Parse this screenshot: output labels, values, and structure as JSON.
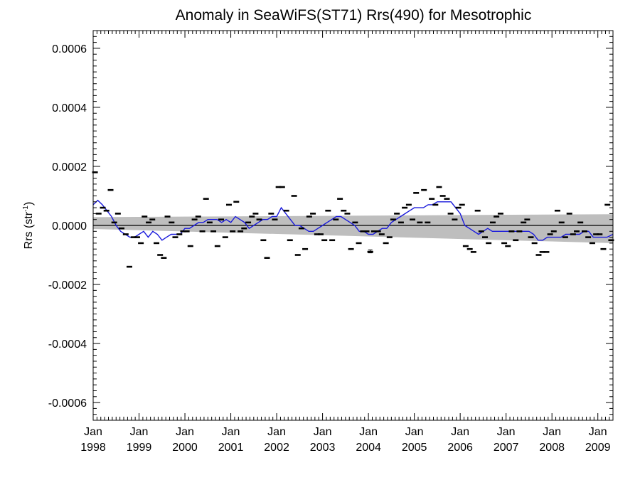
{
  "chart_data": {
    "type": "line",
    "title": "Anomaly in SeaWiFS(ST71) Rrs(490) for Mesotrophic",
    "ylabel": "Rrs (str",
    "ylabel_sup": "-1",
    "ylabel_close": ")",
    "xlabel": "",
    "xlim": [
      1998.0,
      2009.33
    ],
    "ylim": [
      -0.00066,
      0.00066
    ],
    "yticks": [
      {
        "value": 0.0006,
        "label": "0.0006"
      },
      {
        "value": 0.0004,
        "label": "0.0004"
      },
      {
        "value": 0.0002,
        "label": "0.0002"
      },
      {
        "value": 0.0,
        "label": "0.0000"
      },
      {
        "value": -0.0002,
        "label": "-0.0002"
      },
      {
        "value": -0.0004,
        "label": "-0.0004"
      },
      {
        "value": -0.0006,
        "label": "-0.0006"
      }
    ],
    "xticks": [
      {
        "value": 1998.0,
        "month": "Jan",
        "year": "1998"
      },
      {
        "value": 1999.0,
        "month": "Jan",
        "year": "1999"
      },
      {
        "value": 2000.0,
        "month": "Jan",
        "year": "2000"
      },
      {
        "value": 2001.0,
        "month": "Jan",
        "year": "2001"
      },
      {
        "value": 2002.0,
        "month": "Jan",
        "year": "2002"
      },
      {
        "value": 2003.0,
        "month": "Jan",
        "year": "2003"
      },
      {
        "value": 2004.0,
        "month": "Jan",
        "year": "2004"
      },
      {
        "value": 2005.0,
        "month": "Jan",
        "year": "2005"
      },
      {
        "value": 2006.0,
        "month": "Jan",
        "year": "2006"
      },
      {
        "value": 2007.0,
        "month": "Jan",
        "year": "2007"
      },
      {
        "value": 2008.0,
        "month": "Jan",
        "year": "2008"
      },
      {
        "value": 2009.0,
        "month": "Jan",
        "year": "2009"
      }
    ],
    "zero_line": 0.0,
    "trend_band": {
      "x": [
        1998.0,
        2009.33
      ],
      "upper": [
        2.8e-05,
        3.8e-05
      ],
      "lower": [
        -1.2e-05,
        -6e-05
      ]
    },
    "colors": {
      "points": "#000000",
      "running_mean": "#1a1adc",
      "band": "#bebebe",
      "zero_line": "#000000"
    },
    "series": [
      {
        "kind": "monthly_anomaly",
        "style": "dash",
        "points": [
          [
            1998.04,
            0.00018
          ],
          [
            1998.12,
            4e-05
          ],
          [
            1998.21,
            6e-05
          ],
          [
            1998.29,
            5e-05
          ],
          [
            1998.38,
            0.00012
          ],
          [
            1998.46,
            1e-05
          ],
          [
            1998.54,
            4e-05
          ],
          [
            1998.62,
            -1e-05
          ],
          [
            1998.71,
            -3e-05
          ],
          [
            1998.79,
            -0.00014
          ],
          [
            1998.88,
            -4e-05
          ],
          [
            1998.96,
            -4e-05
          ],
          [
            1999.04,
            -6e-05
          ],
          [
            1999.12,
            3e-05
          ],
          [
            1999.21,
            1e-05
          ],
          [
            1999.29,
            2e-05
          ],
          [
            1999.38,
            -6e-05
          ],
          [
            1999.46,
            -0.0001
          ],
          [
            1999.54,
            -0.00011
          ],
          [
            1999.62,
            3e-05
          ],
          [
            1999.71,
            1e-05
          ],
          [
            1999.79,
            -4e-05
          ],
          [
            1999.88,
            -3e-05
          ],
          [
            1999.96,
            -2e-05
          ],
          [
            2000.04,
            -2e-05
          ],
          [
            2000.12,
            -7e-05
          ],
          [
            2000.21,
            2e-05
          ],
          [
            2000.29,
            3e-05
          ],
          [
            2000.38,
            -2e-05
          ],
          [
            2000.46,
            9e-05
          ],
          [
            2000.54,
            1e-05
          ],
          [
            2000.62,
            -2e-05
          ],
          [
            2000.71,
            -7e-05
          ],
          [
            2000.79,
            2e-05
          ],
          [
            2000.88,
            -4e-05
          ],
          [
            2000.96,
            7e-05
          ],
          [
            2001.04,
            -2e-05
          ],
          [
            2001.12,
            8e-05
          ],
          [
            2001.21,
            -2e-05
          ],
          [
            2001.29,
            -1e-05
          ],
          [
            2001.38,
            1e-05
          ],
          [
            2001.46,
            3e-05
          ],
          [
            2001.54,
            4e-05
          ],
          [
            2001.62,
            2e-05
          ],
          [
            2001.71,
            -5e-05
          ],
          [
            2001.79,
            -0.00011
          ],
          [
            2001.88,
            4e-05
          ],
          [
            2001.96,
            2e-05
          ],
          [
            2002.04,
            0.00013
          ],
          [
            2002.12,
            0.00013
          ],
          [
            2002.21,
            5e-05
          ],
          [
            2002.29,
            -5e-05
          ],
          [
            2002.38,
            0.0001
          ],
          [
            2002.46,
            -0.0001
          ],
          [
            2002.54,
            -1e-05
          ],
          [
            2002.62,
            -8e-05
          ],
          [
            2002.71,
            3e-05
          ],
          [
            2002.79,
            4e-05
          ],
          [
            2002.88,
            -3e-05
          ],
          [
            2002.96,
            -3e-05
          ],
          [
            2003.04,
            -5e-05
          ],
          [
            2003.12,
            5e-05
          ],
          [
            2003.21,
            -5e-05
          ],
          [
            2003.29,
            2e-05
          ],
          [
            2003.38,
            9e-05
          ],
          [
            2003.46,
            5e-05
          ],
          [
            2003.54,
            4e-05
          ],
          [
            2003.62,
            -8e-05
          ],
          [
            2003.71,
            1e-05
          ],
          [
            2003.79,
            -6e-05
          ],
          [
            2003.88,
            -2e-05
          ],
          [
            2003.96,
            -2e-05
          ],
          [
            2004.04,
            -9e-05
          ],
          [
            2004.12,
            -2e-05
          ],
          [
            2004.21,
            -2e-05
          ],
          [
            2004.29,
            -3e-05
          ],
          [
            2004.38,
            -6e-05
          ],
          [
            2004.46,
            -4e-05
          ],
          [
            2004.54,
            2e-05
          ],
          [
            2004.62,
            4e-05
          ],
          [
            2004.71,
            1e-05
          ],
          [
            2004.79,
            6e-05
          ],
          [
            2004.88,
            7e-05
          ],
          [
            2004.96,
            2e-05
          ],
          [
            2005.04,
            0.00011
          ],
          [
            2005.12,
            1e-05
          ],
          [
            2005.21,
            0.00012
          ],
          [
            2005.29,
            1e-05
          ],
          [
            2005.38,
            9e-05
          ],
          [
            2005.46,
            7e-05
          ],
          [
            2005.54,
            0.00013
          ],
          [
            2005.62,
            0.0001
          ],
          [
            2005.71,
            9e-05
          ],
          [
            2005.79,
            4e-05
          ],
          [
            2005.88,
            2e-05
          ],
          [
            2005.96,
            6e-05
          ],
          [
            2006.04,
            7e-05
          ],
          [
            2006.12,
            -7e-05
          ],
          [
            2006.21,
            -8e-05
          ],
          [
            2006.29,
            -9e-05
          ],
          [
            2006.38,
            5e-05
          ],
          [
            2006.46,
            -2e-05
          ],
          [
            2006.54,
            -4e-05
          ],
          [
            2006.62,
            -6e-05
          ],
          [
            2006.71,
            1e-05
          ],
          [
            2006.79,
            3e-05
          ],
          [
            2006.88,
            4e-05
          ],
          [
            2006.96,
            -6e-05
          ],
          [
            2007.04,
            -7e-05
          ],
          [
            2007.12,
            -2e-05
          ],
          [
            2007.21,
            -5e-05
          ],
          [
            2007.29,
            -2e-05
          ],
          [
            2007.38,
            1e-05
          ],
          [
            2007.46,
            2e-05
          ],
          [
            2007.54,
            -4e-05
          ],
          [
            2007.62,
            -6e-05
          ],
          [
            2007.71,
            -0.0001
          ],
          [
            2007.79,
            -9e-05
          ],
          [
            2007.88,
            -9e-05
          ],
          [
            2007.96,
            -3e-05
          ],
          [
            2008.04,
            -2e-05
          ],
          [
            2008.12,
            5e-05
          ],
          [
            2008.21,
            1e-05
          ],
          [
            2008.29,
            -4e-05
          ],
          [
            2008.38,
            4e-05
          ],
          [
            2008.46,
            -3e-05
          ],
          [
            2008.54,
            -2e-05
          ],
          [
            2008.62,
            1e-05
          ],
          [
            2008.71,
            -2e-05
          ],
          [
            2008.79,
            -4e-05
          ],
          [
            2008.88,
            -6e-05
          ],
          [
            2008.96,
            -3e-05
          ],
          [
            2009.04,
            -3e-05
          ],
          [
            2009.12,
            -8e-05
          ],
          [
            2009.21,
            7e-05
          ],
          [
            2009.29,
            -5e-05
          ]
        ]
      },
      {
        "kind": "error_bar",
        "style": "errorbar",
        "points": [
          [
            2004.04,
            -8.8e-05,
            -8.3e-05,
            -9.3e-05
          ]
        ]
      },
      {
        "kind": "running_mean",
        "style": "line",
        "points": [
          [
            1998.0,
            7e-05
          ],
          [
            1998.1,
            8.5e-05
          ],
          [
            1998.2,
            7e-05
          ],
          [
            1998.3,
            5e-05
          ],
          [
            1998.4,
            3e-05
          ],
          [
            1998.5,
            0.0
          ],
          [
            1998.6,
            -2e-05
          ],
          [
            1998.7,
            -3e-05
          ],
          [
            1998.8,
            -4e-05
          ],
          [
            1998.9,
            -4e-05
          ],
          [
            1999.0,
            -3e-05
          ],
          [
            1999.1,
            -2e-05
          ],
          [
            1999.2,
            -4e-05
          ],
          [
            1999.3,
            -2e-05
          ],
          [
            1999.4,
            -3e-05
          ],
          [
            1999.5,
            -5e-05
          ],
          [
            1999.6,
            -4e-05
          ],
          [
            1999.7,
            -3e-05
          ],
          [
            1999.8,
            -3e-05
          ],
          [
            1999.9,
            -3e-05
          ],
          [
            2000.0,
            -1e-05
          ],
          [
            2000.1,
            -1e-05
          ],
          [
            2000.2,
            0.0
          ],
          [
            2000.3,
            1e-05
          ],
          [
            2000.4,
            1e-05
          ],
          [
            2000.5,
            2e-05
          ],
          [
            2000.6,
            2e-05
          ],
          [
            2000.7,
            2e-05
          ],
          [
            2000.8,
            1e-05
          ],
          [
            2000.9,
            2e-05
          ],
          [
            2001.0,
            1e-05
          ],
          [
            2001.1,
            3e-05
          ],
          [
            2001.2,
            2e-05
          ],
          [
            2001.3,
            1e-05
          ],
          [
            2001.4,
            -1e-05
          ],
          [
            2001.5,
            0.0
          ],
          [
            2001.6,
            1e-05
          ],
          [
            2001.7,
            2e-05
          ],
          [
            2001.8,
            2e-05
          ],
          [
            2001.9,
            3e-05
          ],
          [
            2002.0,
            3e-05
          ],
          [
            2002.1,
            6e-05
          ],
          [
            2002.2,
            4e-05
          ],
          [
            2002.3,
            2e-05
          ],
          [
            2002.4,
            0.0
          ],
          [
            2002.5,
            0.0
          ],
          [
            2002.6,
            -1e-05
          ],
          [
            2002.7,
            -2e-05
          ],
          [
            2002.8,
            -2e-05
          ],
          [
            2002.9,
            -1e-05
          ],
          [
            2003.0,
            0.0
          ],
          [
            2003.1,
            1e-05
          ],
          [
            2003.2,
            2e-05
          ],
          [
            2003.3,
            3e-05
          ],
          [
            2003.4,
            3e-05
          ],
          [
            2003.5,
            2e-05
          ],
          [
            2003.6,
            1e-05
          ],
          [
            2003.7,
            0.0
          ],
          [
            2003.8,
            -2e-05
          ],
          [
            2003.9,
            -2e-05
          ],
          [
            2004.0,
            -3e-05
          ],
          [
            2004.1,
            -3e-05
          ],
          [
            2004.2,
            -2e-05
          ],
          [
            2004.3,
            -1e-05
          ],
          [
            2004.4,
            -1e-05
          ],
          [
            2004.5,
            1e-05
          ],
          [
            2004.6,
            2e-05
          ],
          [
            2004.7,
            3e-05
          ],
          [
            2004.8,
            4e-05
          ],
          [
            2004.9,
            5e-05
          ],
          [
            2005.0,
            6e-05
          ],
          [
            2005.1,
            6e-05
          ],
          [
            2005.2,
            6e-05
          ],
          [
            2005.3,
            7e-05
          ],
          [
            2005.4,
            7e-05
          ],
          [
            2005.5,
            8e-05
          ],
          [
            2005.6,
            8e-05
          ],
          [
            2005.7,
            8e-05
          ],
          [
            2005.8,
            8e-05
          ],
          [
            2005.9,
            6e-05
          ],
          [
            2006.0,
            4e-05
          ],
          [
            2006.1,
            0.0
          ],
          [
            2006.2,
            -1e-05
          ],
          [
            2006.3,
            -2e-05
          ],
          [
            2006.4,
            -3e-05
          ],
          [
            2006.5,
            -2e-05
          ],
          [
            2006.6,
            -1e-05
          ],
          [
            2006.7,
            -2e-05
          ],
          [
            2006.8,
            -2e-05
          ],
          [
            2006.9,
            -2e-05
          ],
          [
            2007.0,
            -2e-05
          ],
          [
            2007.1,
            -2e-05
          ],
          [
            2007.2,
            -2e-05
          ],
          [
            2007.3,
            -2e-05
          ],
          [
            2007.4,
            -2e-05
          ],
          [
            2007.5,
            -2e-05
          ],
          [
            2007.6,
            -3e-05
          ],
          [
            2007.7,
            -5e-05
          ],
          [
            2007.8,
            -5e-05
          ],
          [
            2007.9,
            -4e-05
          ],
          [
            2008.0,
            -4e-05
          ],
          [
            2008.1,
            -4e-05
          ],
          [
            2008.2,
            -4e-05
          ],
          [
            2008.3,
            -3e-05
          ],
          [
            2008.4,
            -3e-05
          ],
          [
            2008.5,
            -3e-05
          ],
          [
            2008.6,
            -3e-05
          ],
          [
            2008.7,
            -2e-05
          ],
          [
            2008.8,
            -2e-05
          ],
          [
            2008.9,
            -4e-05
          ],
          [
            2009.0,
            -4e-05
          ],
          [
            2009.1,
            -4e-05
          ],
          [
            2009.2,
            -4e-05
          ],
          [
            2009.33,
            -3e-05
          ]
        ]
      }
    ]
  }
}
